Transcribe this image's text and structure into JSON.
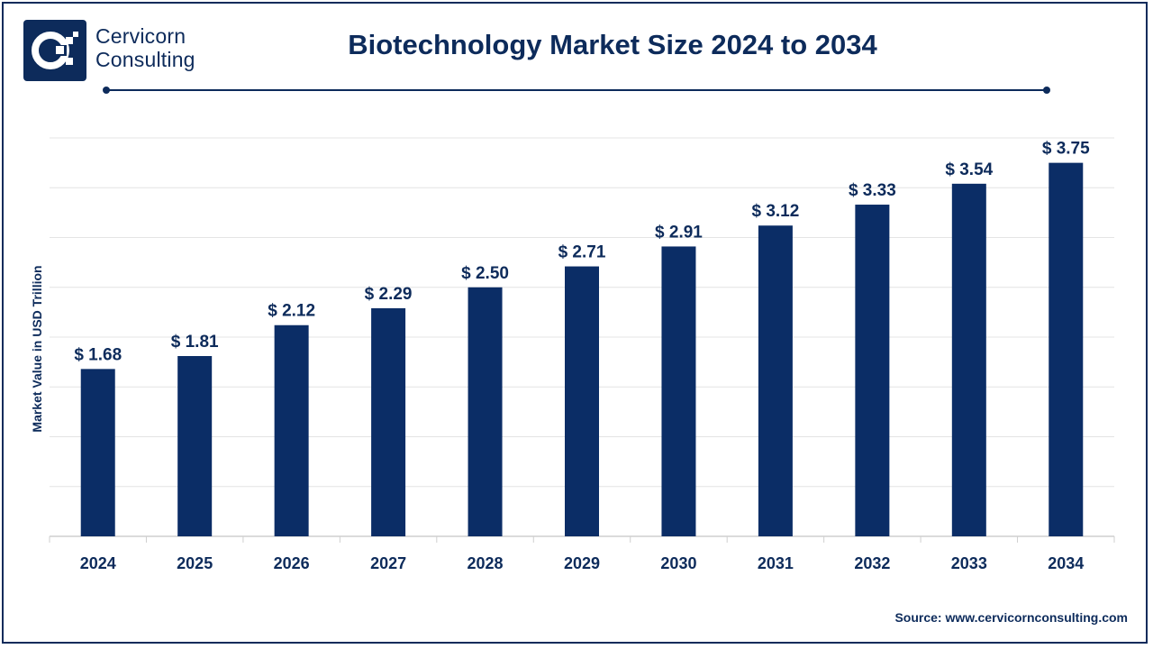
{
  "brand": {
    "line1": "Cervicorn",
    "line2": "Consulting"
  },
  "colors": {
    "navy": "#0d2b5b",
    "bar": "#0b2d66",
    "grid": "#e4e4e4",
    "axis": "#cfcfcf"
  },
  "chart_data": {
    "type": "bar",
    "title": "Biotechnology Market Size 2024 to 2034",
    "xlabel": "",
    "ylabel": "Market Value in USD Trillion",
    "categories": [
      "2024",
      "2025",
      "2026",
      "2027",
      "2028",
      "2029",
      "2030",
      "2031",
      "2032",
      "2033",
      "2034"
    ],
    "values": [
      1.68,
      1.81,
      2.12,
      2.29,
      2.5,
      2.71,
      2.91,
      3.12,
      3.33,
      3.54,
      3.75
    ],
    "value_labels": [
      "$ 1.68",
      "$ 1.81",
      "$ 2.12",
      "$ 2.29",
      "$ 2.50",
      "$ 2.71",
      "$ 2.91",
      "$ 3.12",
      "$ 3.33",
      "$ 3.54",
      "$ 3.75"
    ],
    "ylim": [
      0,
      4
    ],
    "grid": true,
    "legend": "none"
  },
  "source": "Source: www.cervicornconsulting.com"
}
